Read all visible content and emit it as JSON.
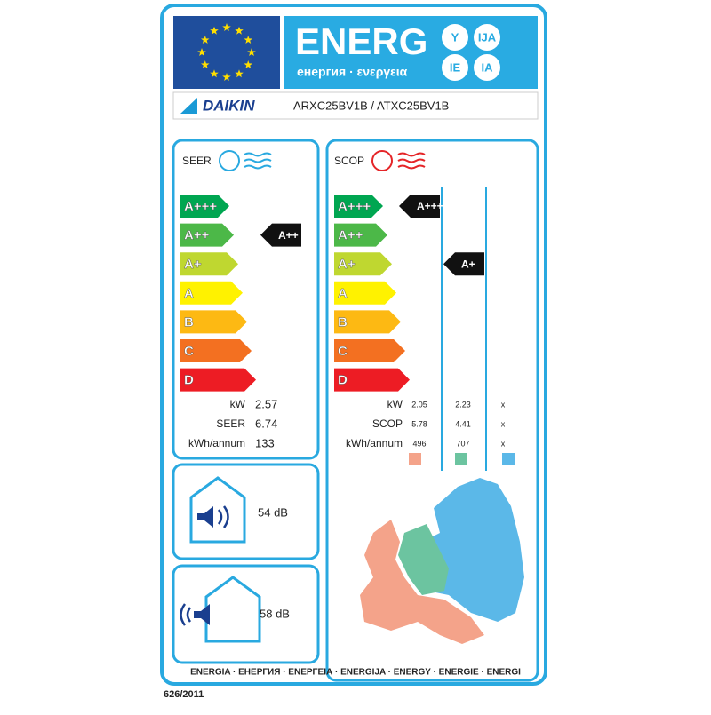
{
  "header": {
    "energ": "ENERG",
    "subtitle": "енергия · ενεργεια",
    "languages": [
      "Y",
      "IJA",
      "IE",
      "IA"
    ]
  },
  "supplier": {
    "brand": "DAIKIN",
    "model": "ARXC25BV1B / ATXC25BV1B"
  },
  "seer": {
    "title": "SEER",
    "classes": [
      "A+++",
      "A++",
      "A+",
      "A",
      "B",
      "C",
      "D"
    ],
    "rating": "A++",
    "rows": [
      {
        "label": "kW",
        "values": [
          "2.57"
        ]
      },
      {
        "label": "SEER",
        "values": [
          "6.74"
        ]
      },
      {
        "label": "kWh/annum",
        "values": [
          "133"
        ]
      }
    ]
  },
  "scop": {
    "title": "SCOP",
    "classes": [
      "A+++",
      "A++",
      "A+",
      "A",
      "B",
      "C",
      "D"
    ],
    "ratings": [
      "A+++",
      "A+"
    ],
    "rows": [
      {
        "label": "kW",
        "values": [
          "2.05",
          "2.23",
          "x"
        ]
      },
      {
        "label": "SCOP",
        "values": [
          "5.78",
          "4.41",
          "x"
        ]
      },
      {
        "label": "kWh/annum",
        "values": [
          "496",
          "707",
          "x"
        ]
      }
    ]
  },
  "noise": {
    "indoor": "54 dB",
    "outdoor": "58 dB"
  },
  "footer": {
    "languages": "ENERGIA · ЕНЕРГИЯ · ΕΝΕΡΓΕΙΑ · ENERGIJA · ENERGY · ENERGIE · ENERGI",
    "regulation": "626/2011"
  }
}
